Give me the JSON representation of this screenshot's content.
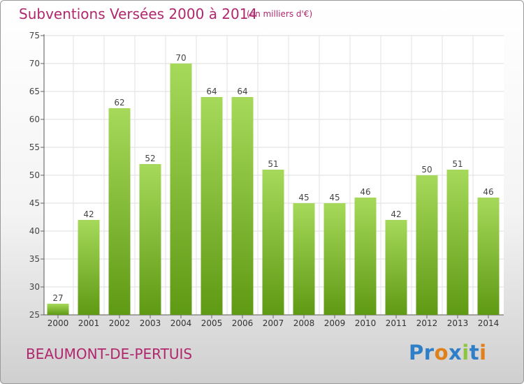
{
  "header": {
    "title": "Subventions Versées 2000 à 2014",
    "unit_note": "(en milliers d'€)"
  },
  "footer": {
    "commune": "BEAUMONT-DE-PERTUIS",
    "brand": "Proxiti"
  },
  "colors": {
    "title": "#b0276d",
    "bar_light": "#a6d95a",
    "bar_dark": "#5f9a14",
    "brand_letters": [
      "#2f7fc8",
      "#2f7fc8",
      "#e0801c",
      "#2f7fc8",
      "#8cc63f",
      "#2f7fc8",
      "#e0801c"
    ]
  },
  "chart_data": {
    "type": "bar",
    "categories": [
      "2000",
      "2001",
      "2002",
      "2003",
      "2004",
      "2005",
      "2006",
      "2007",
      "2008",
      "2009",
      "2010",
      "2011",
      "2012",
      "2013",
      "2014"
    ],
    "values": [
      27,
      42,
      62,
      52,
      70,
      64,
      64,
      51,
      45,
      45,
      46,
      42,
      50,
      51,
      46
    ],
    "ylim": [
      25,
      75
    ],
    "yticks": [
      25,
      30,
      35,
      40,
      45,
      50,
      55,
      60,
      65,
      70,
      75
    ],
    "grid": true,
    "data_labels": true
  }
}
